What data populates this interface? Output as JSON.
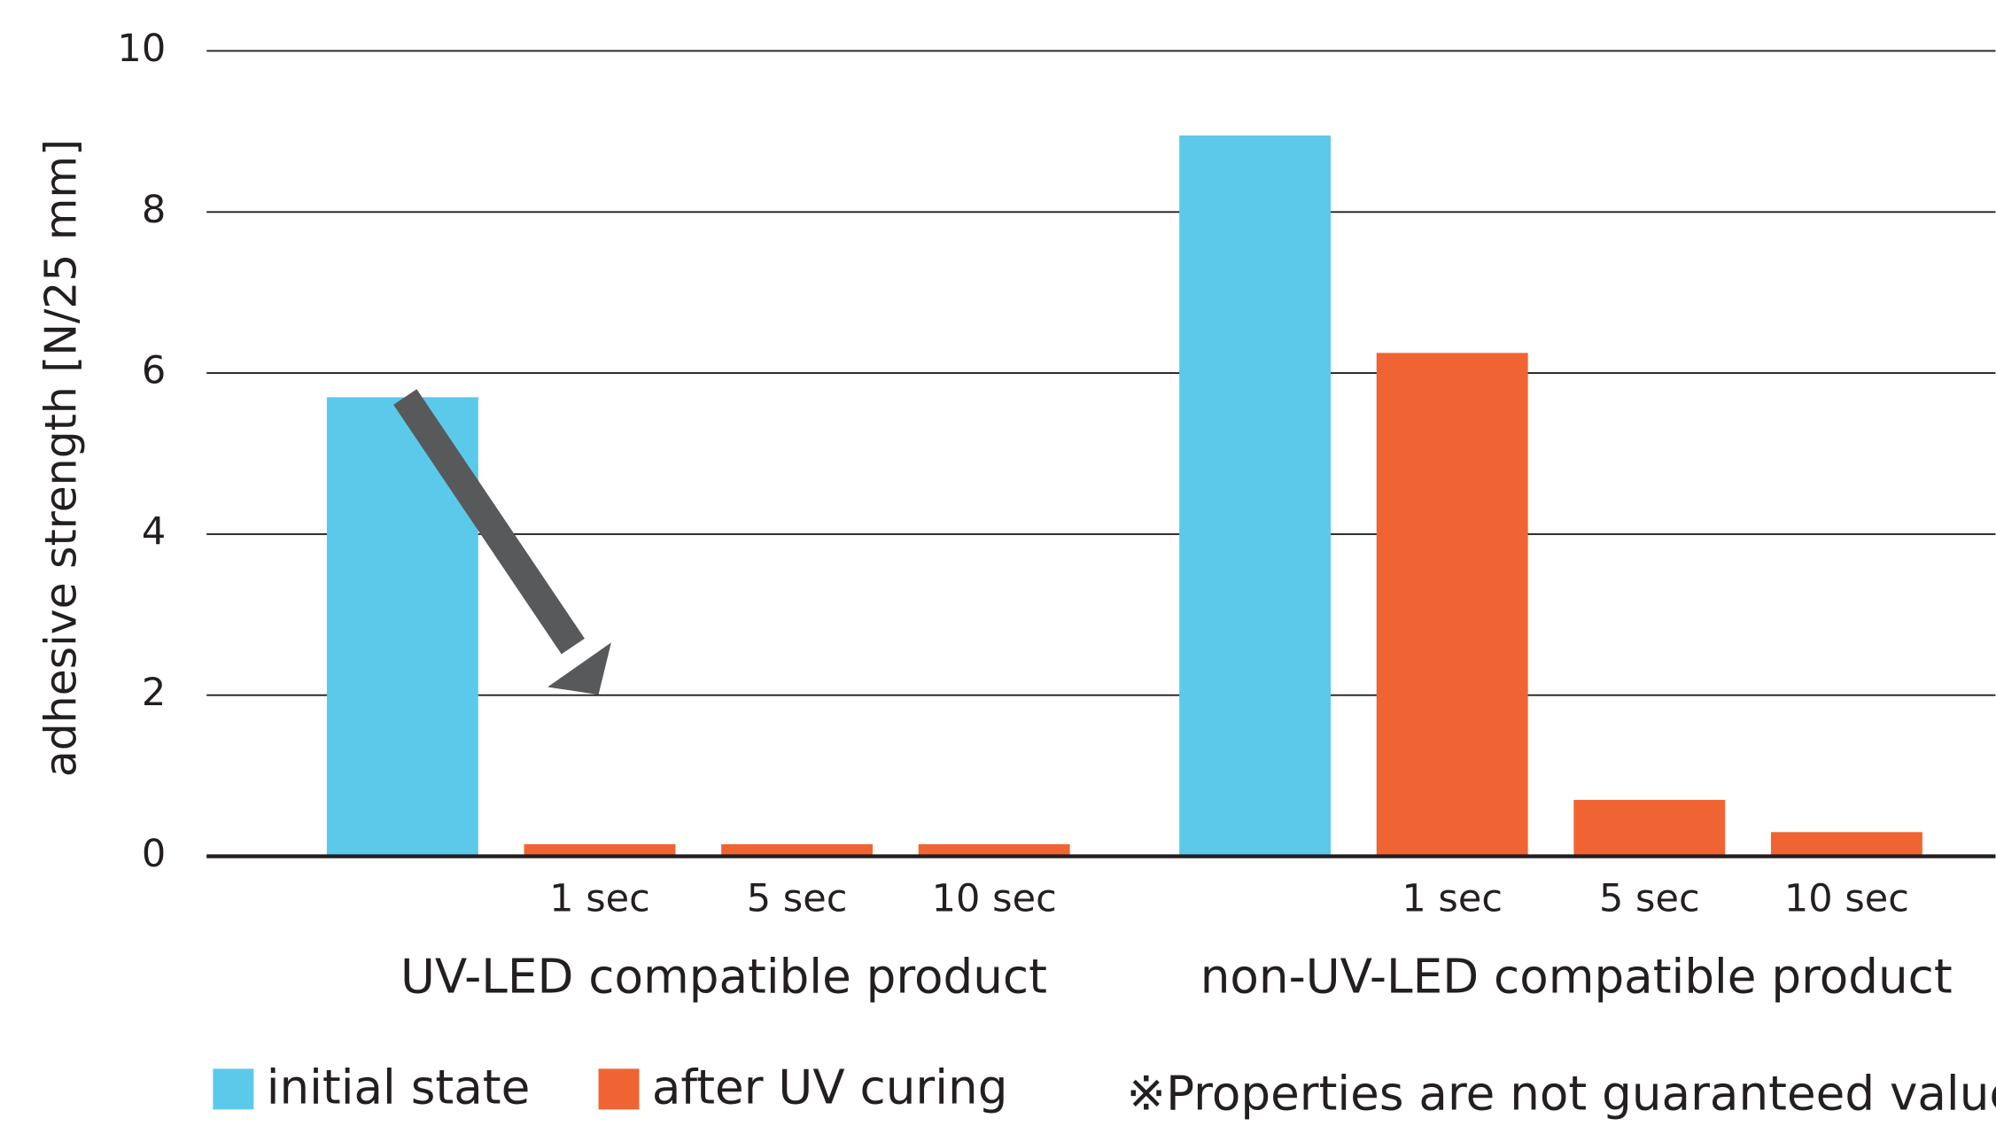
{
  "chart_data": {
    "type": "bar",
    "y_label": "adhesive strength [N/25 mm]",
    "categories": [
      null,
      "1 sec",
      "5 sec",
      "10 sec",
      null,
      "1 sec",
      "5 sec",
      "10 sec"
    ],
    "groups": [
      "UV-LED compatible product",
      "non-UV-LED compatible product"
    ],
    "series": [
      {
        "name": "initial state",
        "color": "#5bc9ea",
        "values": [
          5.7,
          null,
          null,
          null,
          8.95,
          null,
          null,
          null
        ]
      },
      {
        "name": "after UV curing",
        "color": "#f06433",
        "values": [
          null,
          0.15,
          0.15,
          0.15,
          null,
          6.25,
          0.7,
          0.3
        ]
      }
    ],
    "ylim": [
      0,
      10
    ],
    "yticks": [
      0,
      2,
      4,
      6,
      8,
      10
    ],
    "grid": true,
    "note": "※Properties are not guaranteed values."
  }
}
